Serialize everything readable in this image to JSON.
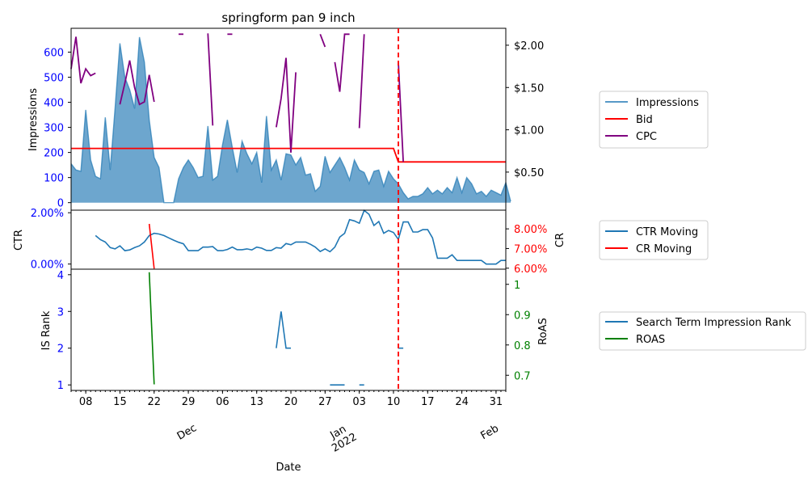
{
  "title": "springform pan 9 inch",
  "xlabel": "Date",
  "date_ticks": [
    {
      "date": "2021-11-08",
      "label": "08"
    },
    {
      "date": "2021-11-15",
      "label": "15"
    },
    {
      "date": "2021-11-22",
      "label": "22"
    },
    {
      "date": "2021-11-29",
      "label": "29"
    },
    {
      "date": "2021-12-06",
      "label": "06"
    },
    {
      "date": "2021-12-13",
      "label": "13"
    },
    {
      "date": "2021-12-20",
      "label": "20"
    },
    {
      "date": "2021-12-27",
      "label": "27"
    },
    {
      "date": "2022-01-03",
      "label": "03"
    },
    {
      "date": "2022-01-10",
      "label": "10"
    },
    {
      "date": "2022-01-17",
      "label": "17"
    },
    {
      "date": "2022-01-24",
      "label": "24"
    },
    {
      "date": "2022-01-31",
      "label": "31"
    }
  ],
  "month_labels": [
    {
      "date": "2021-12-01",
      "label": "Dec"
    },
    {
      "date": "2022-01-01",
      "label": "Jan\n2022"
    },
    {
      "date": "2022-02-01",
      "label": "Feb"
    }
  ],
  "colors": {
    "impressions": "#1f77b4",
    "bid": "#ff0000",
    "cpc": "#800080",
    "ctr": "#1f77b4",
    "cr": "#ff0000",
    "rank": "#1f77b4",
    "roas": "#008000",
    "left_tick": "#0000ff",
    "event_line": "#ff0000"
  },
  "chart_data": [
    {
      "type": "area",
      "panel": "top",
      "xlim": [
        "2021-11-05",
        "2022-02-02"
      ],
      "ylabel": "Impressions",
      "ylim": [
        -30,
        695
      ],
      "yticks": [
        0,
        100,
        200,
        300,
        400,
        500,
        600
      ],
      "y2lim": [
        0.05,
        2.2
      ],
      "y2ticks": [
        {
          "value": 0.5,
          "label": "$0.50"
        },
        {
          "value": 1.0,
          "label": "$1.00"
        },
        {
          "value": 1.5,
          "label": "$1.50"
        },
        {
          "value": 2.0,
          "label": "$2.00"
        }
      ],
      "event_date": "2022-01-11",
      "legend": {
        "position": "right",
        "entries": [
          "Impressions",
          "Bid",
          "CPC"
        ]
      },
      "x_start": "2021-11-05",
      "series": [
        {
          "name": "Impressions",
          "axis": "left",
          "kind": "area",
          "values": [
            155,
            130,
            125,
            370,
            170,
            105,
            95,
            340,
            130,
            375,
            635,
            500,
            450,
            375,
            660,
            560,
            330,
            180,
            140,
            0,
            0,
            0,
            95,
            140,
            170,
            140,
            100,
            105,
            305,
            90,
            105,
            230,
            330,
            220,
            120,
            245,
            195,
            155,
            200,
            80,
            345,
            130,
            170,
            90,
            195,
            190,
            150,
            180,
            110,
            115,
            45,
            65,
            185,
            120,
            150,
            180,
            140,
            90,
            170,
            130,
            120,
            75,
            125,
            130,
            65,
            125,
            95,
            75,
            40,
            15,
            25,
            25,
            35,
            60,
            35,
            50,
            35,
            60,
            40,
            100,
            40,
            100,
            75,
            35,
            45,
            25,
            50,
            40,
            30,
            80,
            5
          ]
        },
        {
          "name": "Bid",
          "axis": "right",
          "kind": "line",
          "points": [
            [
              "2021-11-05",
              0.78
            ],
            [
              "2022-01-10",
              0.78
            ],
            [
              "2022-01-11",
              0.62
            ],
            [
              "2022-02-02",
              0.62
            ]
          ]
        },
        {
          "name": "CPC",
          "axis": "right",
          "kind": "segments",
          "segments": [
            [
              [
                "2021-11-05",
                1.72
              ],
              [
                "2021-11-06",
                2.1
              ],
              [
                "2021-11-07",
                1.55
              ],
              [
                "2021-11-08",
                1.72
              ],
              [
                "2021-11-09",
                1.64
              ],
              [
                "2021-11-10",
                1.67
              ]
            ],
            [
              [
                "2021-11-15",
                1.3
              ],
              [
                "2021-11-16",
                1.55
              ],
              [
                "2021-11-17",
                1.82
              ],
              [
                "2021-11-18",
                1.5
              ],
              [
                "2021-11-19",
                1.3
              ],
              [
                "2021-11-20",
                1.33
              ],
              [
                "2021-11-21",
                1.65
              ],
              [
                "2021-11-22",
                1.33
              ]
            ],
            [
              [
                "2021-11-27",
                2.13
              ],
              [
                "2021-11-28",
                2.13
              ]
            ],
            [
              [
                "2021-12-03",
                2.14
              ],
              [
                "2021-12-04",
                1.05
              ]
            ],
            [
              [
                "2021-12-07",
                2.13
              ],
              [
                "2021-12-08",
                2.13
              ]
            ],
            [
              [
                "2021-12-17",
                1.03
              ],
              [
                "2021-12-18",
                1.37
              ],
              [
                "2021-12-19",
                1.85
              ],
              [
                "2021-12-20",
                0.73
              ],
              [
                "2021-12-21",
                1.68
              ]
            ],
            [
              [
                "2021-12-26",
                2.13
              ],
              [
                "2021-12-27",
                1.98
              ]
            ],
            [
              [
                "2021-12-29",
                1.8
              ],
              [
                "2021-12-30",
                1.45
              ],
              [
                "2021-12-31",
                2.13
              ],
              [
                "2022-01-01",
                2.13
              ]
            ],
            [
              [
                "2022-01-03",
                1.02
              ],
              [
                "2022-01-04",
                2.13
              ]
            ],
            [
              [
                "2022-01-11",
                1.8
              ],
              [
                "2022-01-12",
                0.62
              ]
            ]
          ]
        }
      ]
    },
    {
      "type": "line",
      "panel": "middle",
      "ylabel": "CTR",
      "ylim": [
        -0.002,
        0.021
      ],
      "yticks": [
        {
          "value": 0.0,
          "label": "0.00%"
        },
        {
          "value": 0.02,
          "label": "2.00%"
        }
      ],
      "y2label": "CR",
      "y2lim": [
        0.0595,
        0.0895
      ],
      "y2ticks": [
        {
          "value": 0.06,
          "label": "6.00%"
        },
        {
          "value": 0.07,
          "label": "7.00%"
        },
        {
          "value": 0.08,
          "label": "8.00%"
        }
      ],
      "legend": {
        "position": "right",
        "entries": [
          "CTR Moving",
          "CR Moving"
        ]
      },
      "series": [
        {
          "name": "CTR Moving",
          "axis": "left",
          "start": "2021-11-10",
          "values": [
            0.0111,
            0.0095,
            0.0086,
            0.0064,
            0.0059,
            0.0071,
            0.0052,
            0.0055,
            0.0064,
            0.0071,
            0.0086,
            0.0111,
            0.012,
            0.0117,
            0.0111,
            0.0102,
            0.0093,
            0.0085,
            0.0079,
            0.0052,
            0.0052,
            0.0052,
            0.0066,
            0.0066,
            0.0068,
            0.0052,
            0.0052,
            0.0057,
            0.0066,
            0.0056,
            0.0056,
            0.0059,
            0.0055,
            0.0066,
            0.0062,
            0.0053,
            0.0053,
            0.0064,
            0.0062,
            0.008,
            0.0075,
            0.0086,
            0.0086,
            0.0086,
            0.0077,
            0.0066,
            0.0049,
            0.0059,
            0.0048,
            0.0066,
            0.0105,
            0.012,
            0.0173,
            0.0168,
            0.0159,
            0.0209,
            0.0194,
            0.015,
            0.0166,
            0.012,
            0.0131,
            0.0123,
            0.0096,
            0.0164,
            0.0164,
            0.0125,
            0.0125,
            0.0134,
            0.0134,
            0.0102,
            0.0023,
            0.0023,
            0.0023,
            0.0036,
            0.0014,
            0.0014,
            0.0014,
            0.0014,
            0.0014,
            0.0014,
            0.0,
            0.0,
            0.0,
            0.0014,
            0.0014
          ]
        },
        {
          "name": "CR Moving",
          "axis": "right",
          "points": [
            [
              "2021-11-21",
              0.0825
            ],
            [
              "2021-11-22",
              0.0598
            ]
          ]
        }
      ]
    },
    {
      "type": "line",
      "panel": "bottom",
      "ylabel": "IS Rank",
      "ylim": [
        0.85,
        4.15
      ],
      "yticks": [
        1,
        2,
        3,
        4
      ],
      "y2label": "RoAS",
      "y2lim": [
        0.65,
        1.05
      ],
      "y2ticks": [
        0.7,
        0.8,
        0.9,
        1.0
      ],
      "legend": {
        "position": "right",
        "entries": [
          "Search Term Impression Rank",
          "ROAS"
        ]
      },
      "series": [
        {
          "name": "Search Term Impression Rank",
          "axis": "left",
          "segments": [
            [
              [
                "2021-12-17",
                2
              ],
              [
                "2021-12-18",
                3
              ],
              [
                "2021-12-19",
                2
              ],
              [
                "2021-12-20",
                2
              ]
            ],
            [
              [
                "2021-12-28",
                1
              ],
              [
                "2021-12-29",
                1
              ],
              [
                "2021-12-30",
                1
              ],
              [
                "2021-12-31",
                1
              ]
            ],
            [
              [
                "2022-01-03",
                1
              ],
              [
                "2022-01-04",
                1
              ]
            ],
            [
              [
                "2022-01-11",
                2
              ],
              [
                "2022-01-12",
                2
              ]
            ]
          ]
        },
        {
          "name": "ROAS",
          "axis": "right",
          "points": [
            [
              "2021-11-21",
              1.04
            ],
            [
              "2021-11-22",
              0.67
            ]
          ]
        }
      ]
    }
  ]
}
